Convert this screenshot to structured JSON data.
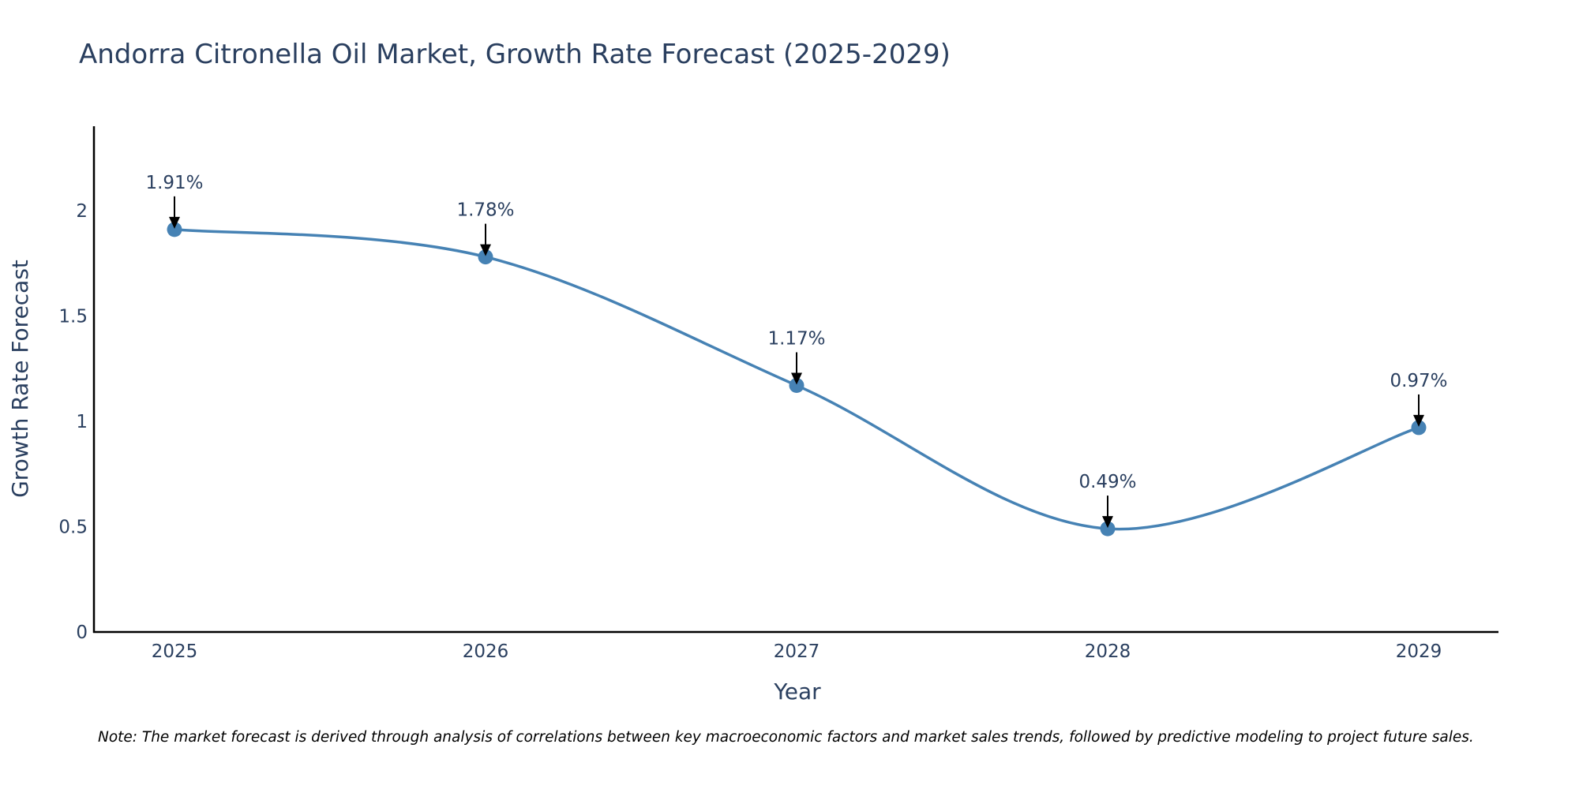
{
  "chart_data": {
    "type": "line",
    "title": "Andorra Citronella Oil Market, Growth Rate Forecast (2025-2029)",
    "xlabel": "Year",
    "ylabel": "Growth Rate Forecast",
    "categories": [
      "2025",
      "2026",
      "2027",
      "2028",
      "2029"
    ],
    "series": [
      {
        "name": "Growth Rate Forecast",
        "values": [
          1.91,
          1.78,
          1.17,
          0.49,
          0.97
        ],
        "color": "#4682b4",
        "line_shape": "spline"
      }
    ],
    "annotations": [
      "1.91%",
      "1.78%",
      "1.17%",
      "0.49%",
      "0.97%"
    ],
    "ylim": [
      0,
      2.4
    ],
    "yticks": [
      0,
      0.5,
      1,
      1.5,
      2
    ],
    "ytick_labels": [
      "0",
      "0.5",
      "1",
      "1.5",
      "2"
    ],
    "grid": false,
    "note": "Note: The market forecast is derived through analysis of correlations between key macroeconomic factors and market sales trends, followed by predictive modeling to project future sales."
  }
}
